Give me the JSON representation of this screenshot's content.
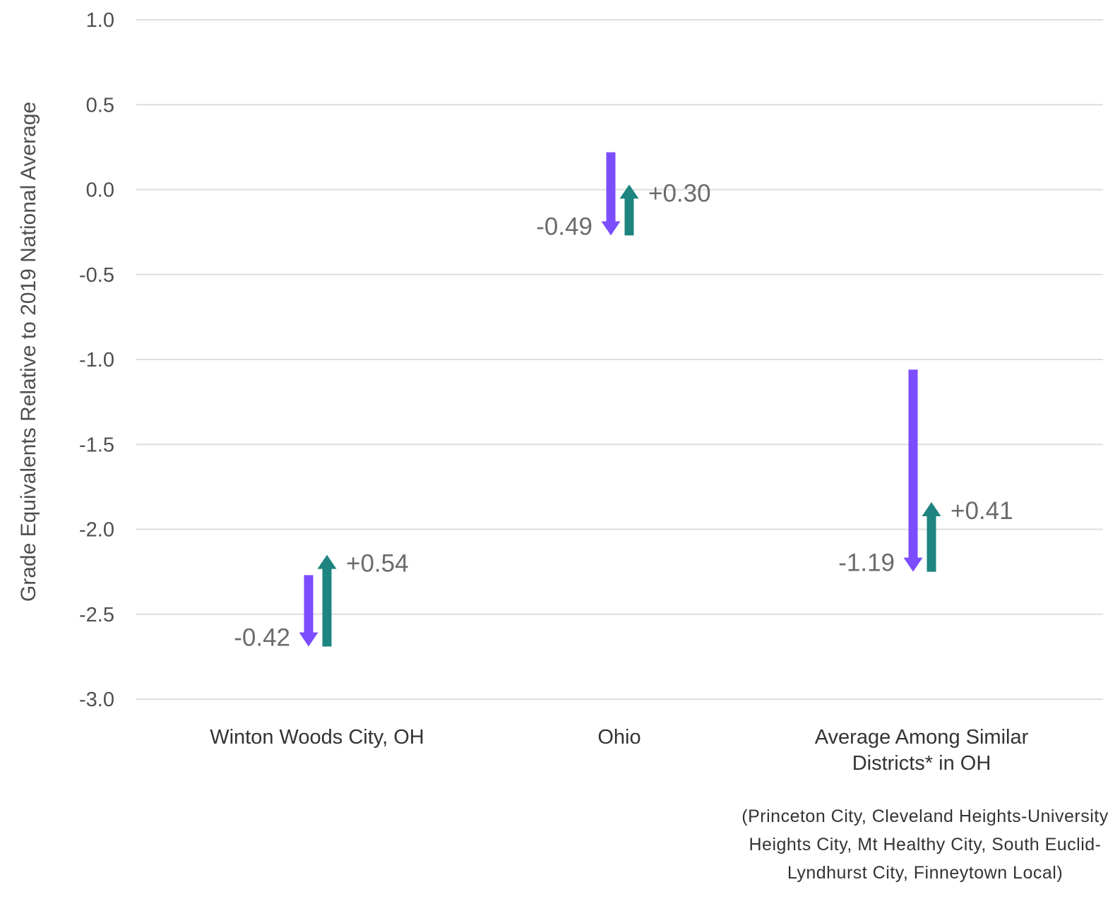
{
  "chart_data": {
    "type": "arrow",
    "ylabel": "Grade Equivalents Relative to 2019 National Average",
    "ylim": [
      -3.0,
      1.0
    ],
    "yticks": [
      "1.0",
      "0.5",
      "0.0",
      "-0.5",
      "-1.0",
      "-1.5",
      "-2.0",
      "-2.5",
      "-3.0"
    ],
    "grid": true,
    "colors": {
      "decline": "#7c4dff",
      "recovery": "#1e847f"
    },
    "categories": [
      {
        "label_lines": [
          "Winton Woods City, OH"
        ],
        "decline": {
          "from": -2.27,
          "to": -2.69,
          "label": "-0.42"
        },
        "recovery": {
          "from": -2.69,
          "to": -2.15,
          "label": "+0.54"
        }
      },
      {
        "label_lines": [
          "Ohio"
        ],
        "decline": {
          "from": 0.22,
          "to": -0.27,
          "label": "-0.49"
        },
        "recovery": {
          "from": -0.27,
          "to": 0.03,
          "label": "+0.30"
        }
      },
      {
        "label_lines": [
          "Average Among Similar",
          "Districts* in OH"
        ],
        "decline": {
          "from": -1.06,
          "to": -2.25,
          "label": "-1.19"
        },
        "recovery": {
          "from": -2.25,
          "to": -1.84,
          "label": "+0.41"
        }
      }
    ],
    "footnote": "(Princeton City, Cleveland Heights-University Heights City, Mt Healthy City, South Euclid-Lyndhurst City, Finneytown Local)"
  }
}
